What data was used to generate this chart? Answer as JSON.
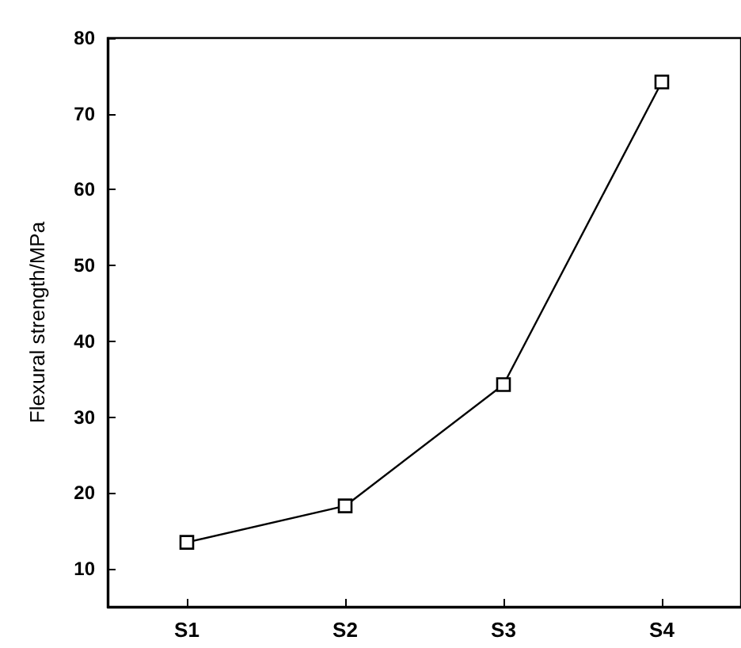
{
  "chart_data": {
    "type": "line",
    "ylabel": "Flexural strength/MPa",
    "categories": [
      "S1",
      "S2",
      "S3",
      "S4"
    ],
    "series": [
      {
        "color": "#000000",
        "values": [
          13.5,
          18.3,
          34.3,
          74.2
        ]
      }
    ],
    "ylim": [
      5,
      80
    ],
    "yticks": [
      10,
      20,
      30,
      40,
      50,
      60,
      70,
      80
    ],
    "marker": "square",
    "line_style": "solid"
  }
}
